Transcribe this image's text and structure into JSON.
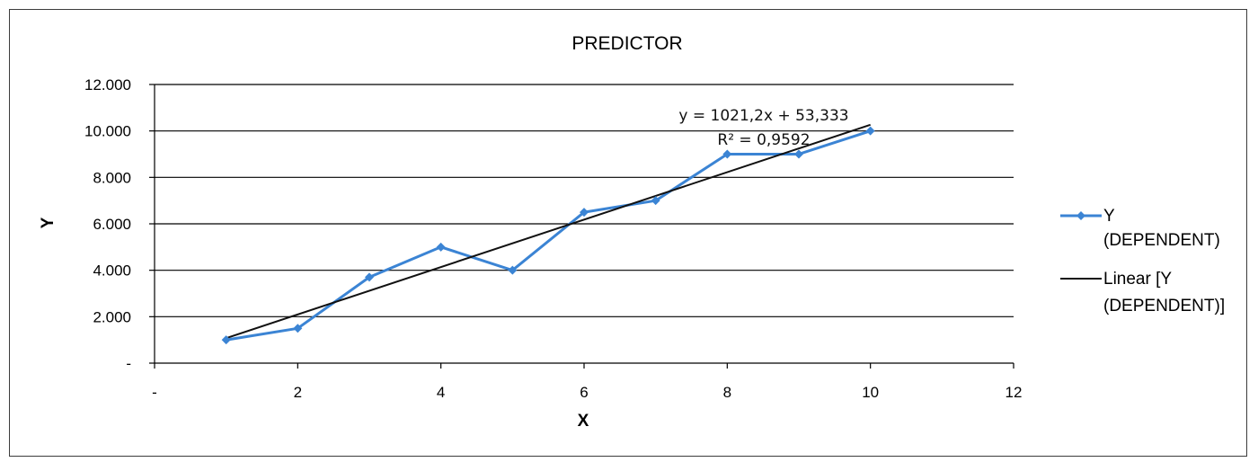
{
  "chart_data": {
    "type": "line",
    "title": "PREDICTOR",
    "xlabel": "X",
    "ylabel": "Y",
    "xlim": [
      0,
      12
    ],
    "ylim": [
      0,
      12000
    ],
    "x_ticks": [
      0,
      2,
      4,
      6,
      8,
      10,
      12
    ],
    "x_tick_labels": [
      "-",
      "2",
      "4",
      "6",
      "8",
      "10",
      "12"
    ],
    "y_ticks": [
      0,
      2000,
      4000,
      6000,
      8000,
      10000,
      12000
    ],
    "y_tick_labels": [
      "-",
      "2.000",
      "4.000",
      "6.000",
      "8.000",
      "10.000",
      "12.000"
    ],
    "grid": "horizontal",
    "legend_position": "right",
    "series": [
      {
        "name": "Y (DEPENDENT)",
        "legend_lines": [
          "Y",
          "(DEPENDENT)"
        ],
        "color": "#3b84d4",
        "marker": "diamond",
        "x": [
          1,
          2,
          3,
          4,
          5,
          6,
          7,
          8,
          9,
          10
        ],
        "y": [
          1000,
          1500,
          3700,
          5000,
          4000,
          6500,
          7000,
          9000,
          9000,
          10000
        ]
      },
      {
        "name": "Linear [Y (DEPENDENT)]",
        "legend_lines": [
          "Linear [Y",
          "(DEPENDENT)]"
        ],
        "color": "#111111",
        "trendline": {
          "slope": 1021.2,
          "intercept": 53.333,
          "x_range": [
            1,
            10
          ]
        }
      }
    ],
    "annotations": {
      "equation": "y = 1021,2x + 53,333",
      "r_squared": "R² = 0,9592"
    }
  }
}
